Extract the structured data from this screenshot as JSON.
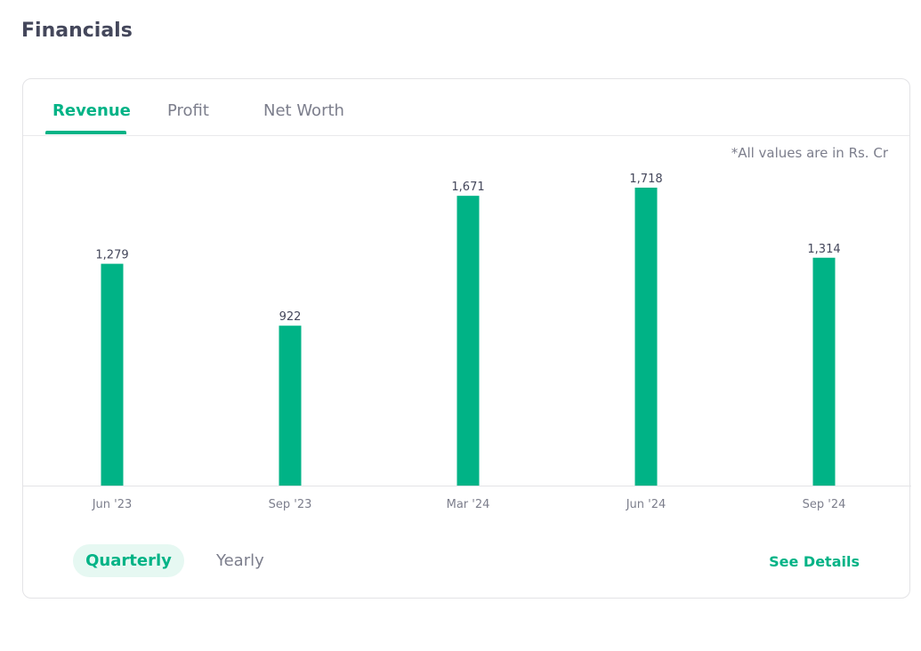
{
  "page": {
    "title": "Financials"
  },
  "tabs": [
    {
      "label": "Revenue",
      "active": true
    },
    {
      "label": "Profit",
      "active": false
    },
    {
      "label": "Net Worth",
      "active": false
    }
  ],
  "units_note": "*All values are in Rs. Cr",
  "period_toggle": {
    "options": [
      {
        "label": "Quarterly",
        "active": true
      },
      {
        "label": "Yearly",
        "active": false
      }
    ]
  },
  "see_details_label": "See Details",
  "colors": {
    "accent": "#00b386",
    "accent_light": "#e6f8f2",
    "text_dark": "#44475b",
    "text_muted": "#7c7e8c"
  },
  "chart_data": {
    "type": "bar",
    "categories": [
      "Jun '23",
      "Sep '23",
      "Mar '24",
      "Jun '24",
      "Sep '24"
    ],
    "values": [
      1279,
      922,
      1671,
      1718,
      1314
    ],
    "value_labels": [
      "1,279",
      "922",
      "1,671",
      "1,718",
      "1,314"
    ],
    "title": "",
    "xlabel": "",
    "ylabel": "",
    "ylim": [
      0,
      1800
    ],
    "grid": false,
    "bar_color": "#00b386"
  }
}
